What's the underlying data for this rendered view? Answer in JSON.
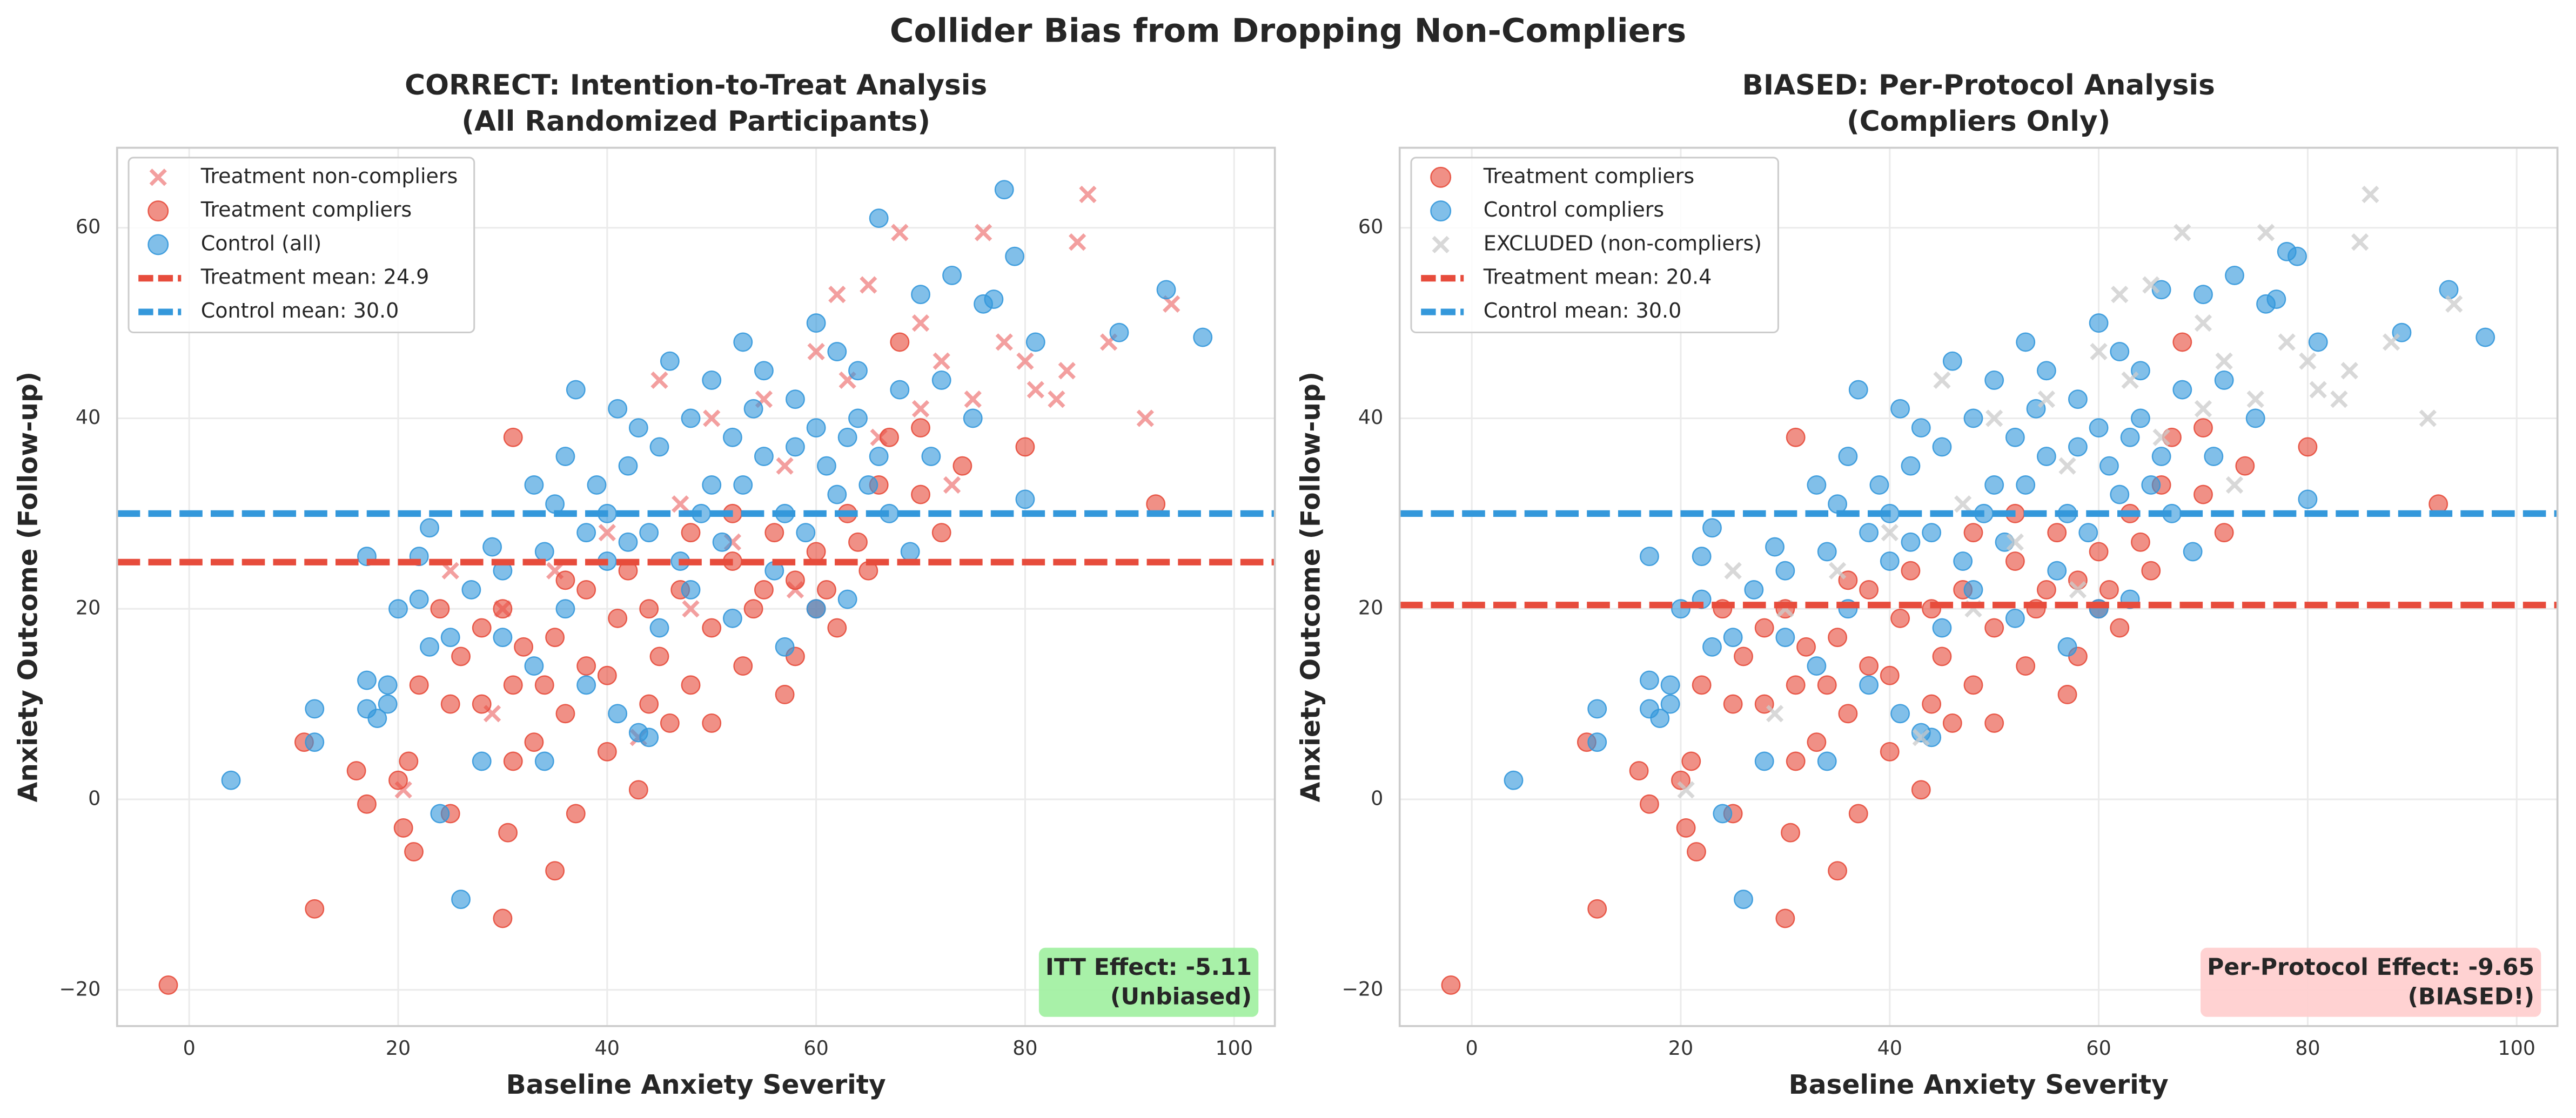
{
  "suptitle": "Collider Bias from Dropping Non-Compliers",
  "chart_data": [
    {
      "type": "scatter",
      "title": "CORRECT: Intention-to-Treat Analysis",
      "subtitle": "(All Randomized Participants)",
      "xlabel": "Baseline Anxiety Severity",
      "ylabel": "Anxiety Outcome (Follow-up)",
      "xlim": [
        -6.9,
        103.9
      ],
      "ylim": [
        -23.8,
        68.4
      ],
      "xticks": [
        0,
        20,
        40,
        60,
        80,
        100
      ],
      "yticks": [
        {
          "value": -20,
          "label": "−20"
        },
        0,
        20,
        40,
        60
      ],
      "grid": true,
      "legend": "upper left",
      "series": [
        {
          "name": "Treatment non-compliers",
          "color": "#f08080",
          "marker": "x",
          "x": [
            86,
            85,
            76,
            94,
            91.5,
            84,
            83,
            81,
            78,
            80,
            72,
            75,
            68,
            65,
            70,
            62,
            20.5,
            43,
            60,
            55,
            50,
            47,
            45,
            40,
            35,
            30,
            25,
            52,
            57,
            63,
            66,
            73,
            88,
            29,
            48,
            58,
            70
          ],
          "values": [
            63.5,
            58.5,
            59.5,
            52,
            40,
            45,
            42,
            43,
            48,
            46,
            46,
            42,
            59.5,
            54,
            50,
            53,
            1,
            6.5,
            47,
            42,
            40,
            31,
            44,
            28,
            24,
            20,
            24,
            27,
            35,
            44,
            38,
            33,
            48,
            9,
            20,
            22,
            41
          ]
        },
        {
          "name": "Treatment compliers",
          "color": "#e74c3c",
          "marker": "o",
          "x": [
            -2,
            12,
            11,
            16,
            17,
            20,
            20.5,
            21,
            21.5,
            25,
            30,
            30.5,
            35,
            37,
            43,
            92.5,
            80,
            70,
            68,
            74,
            72,
            60,
            57,
            58,
            50,
            48,
            44,
            40,
            33,
            31,
            28,
            25,
            26,
            24,
            22,
            30,
            35,
            38,
            41,
            45,
            47,
            50,
            52,
            55,
            56,
            60,
            63,
            65,
            62,
            66,
            70,
            48,
            42,
            38,
            34,
            36,
            31,
            52,
            54,
            46,
            40,
            58,
            67,
            64,
            44,
            32,
            28,
            36,
            53,
            61,
            31
          ],
          "values": [
            -19.5,
            -11.5,
            6,
            3,
            -0.5,
            2,
            -3,
            4,
            -5.5,
            -1.5,
            -12.5,
            -3.5,
            -7.5,
            -1.5,
            1,
            31,
            37,
            39,
            48,
            35,
            28,
            20,
            11,
            15,
            8,
            12,
            10,
            5,
            6,
            12,
            18,
            10,
            15,
            20,
            12,
            20,
            17,
            14,
            19,
            15,
            22,
            18,
            25,
            22,
            28,
            26,
            30,
            24,
            18,
            33,
            32,
            28,
            24,
            22,
            12,
            9,
            4,
            30,
            20,
            8,
            13,
            23,
            38,
            27,
            20,
            16,
            10,
            23,
            14,
            22,
            38
          ]
        },
        {
          "name": "Control (all)",
          "color": "#3498db",
          "marker": "o",
          "x": [
            4,
            12,
            12,
            17,
            17,
            18,
            19,
            19,
            17,
            22,
            23,
            24,
            26,
            28,
            29,
            97,
            93.5,
            89,
            81,
            78,
            76,
            79,
            80,
            66,
            77,
            73,
            70,
            72,
            68,
            75,
            64,
            62,
            60,
            58,
            55,
            52,
            50,
            48,
            45,
            42,
            40,
            38,
            35,
            37,
            34,
            33,
            30,
            27,
            25,
            23,
            22,
            20,
            30,
            33,
            36,
            38,
            41,
            43,
            45,
            47,
            49,
            51,
            53,
            55,
            57,
            59,
            61,
            63,
            65,
            67,
            69,
            71,
            46,
            50,
            54,
            56,
            44,
            42,
            40,
            39,
            43,
            58,
            60,
            62,
            64,
            66,
            53,
            48,
            52,
            57,
            60,
            63,
            41,
            36,
            44,
            34
          ],
          "values": [
            2,
            9.5,
            6,
            12.5,
            9.5,
            8.5,
            12,
            10,
            25.5,
            25.5,
            28.5,
            -1.5,
            -10.5,
            4,
            26.5,
            48.5,
            53.5,
            49,
            48,
            64,
            52,
            57,
            31.5,
            61,
            52.5,
            55,
            53,
            44,
            43,
            40,
            45,
            47,
            50,
            42,
            45,
            38,
            44,
            40,
            37,
            35,
            30,
            28,
            31,
            43,
            26,
            33,
            24,
            22,
            17,
            16,
            21,
            20,
            17,
            14,
            20,
            12,
            9,
            7,
            18,
            25,
            30,
            27,
            33,
            36,
            30,
            28,
            35,
            38,
            33,
            30,
            26,
            36,
            46,
            33,
            41,
            24,
            28,
            27,
            25,
            33,
            39,
            37,
            39,
            32,
            40,
            36,
            48,
            22,
            19,
            16,
            20,
            21,
            41,
            36,
            6.5,
            4
          ]
        }
      ],
      "hlines": [
        {
          "name": "Treatment mean: 24.9",
          "value": 24.9,
          "color": "#e74c3c"
        },
        {
          "name": "Control mean: 30.0",
          "value": 30.0,
          "color": "#3498db"
        }
      ],
      "annotation": [
        "ITT Effect: -5.11",
        "(Unbiased)"
      ],
      "annotation_color": "#a3f0a3"
    },
    {
      "type": "scatter",
      "title": "BIASED: Per-Protocol Analysis",
      "subtitle": "(Compliers Only)",
      "xlabel": "Baseline Anxiety Severity",
      "ylabel": "Anxiety Outcome (Follow-up)",
      "xlim": [
        -6.9,
        103.9
      ],
      "ylim": [
        -23.8,
        68.4
      ],
      "xticks": [
        0,
        20,
        40,
        60,
        80,
        100
      ],
      "yticks": [
        {
          "value": -20,
          "label": "−20"
        },
        0,
        20,
        40,
        60
      ],
      "grid": true,
      "legend": "upper left",
      "series": [
        {
          "name": "Treatment compliers",
          "color": "#e74c3c",
          "marker": "o",
          "x": [
            -2,
            12,
            11,
            16,
            17,
            20,
            20.5,
            21,
            21.5,
            25,
            30,
            30.5,
            35,
            37,
            43,
            92.5,
            80,
            70,
            68,
            74,
            72,
            60,
            57,
            58,
            50,
            48,
            44,
            40,
            33,
            31,
            28,
            25,
            26,
            24,
            22,
            30,
            35,
            38,
            41,
            45,
            47,
            50,
            52,
            55,
            56,
            60,
            63,
            65,
            62,
            66,
            70,
            48,
            42,
            38,
            34,
            36,
            31,
            52,
            54,
            46,
            40,
            58,
            67,
            64,
            44,
            32,
            28,
            36,
            53,
            61,
            31
          ],
          "values": [
            -19.5,
            -11.5,
            6,
            3,
            -0.5,
            2,
            -3,
            4,
            -5.5,
            -1.5,
            -12.5,
            -3.5,
            -7.5,
            -1.5,
            1,
            31,
            37,
            39,
            48,
            35,
            28,
            20,
            11,
            15,
            8,
            12,
            10,
            5,
            6,
            12,
            18,
            10,
            15,
            20,
            12,
            20,
            17,
            14,
            19,
            15,
            22,
            18,
            25,
            22,
            28,
            26,
            30,
            24,
            18,
            33,
            32,
            28,
            24,
            22,
            12,
            9,
            4,
            30,
            20,
            8,
            13,
            23,
            38,
            27,
            20,
            16,
            10,
            23,
            14,
            22,
            38
          ]
        },
        {
          "name": "Control compliers",
          "color": "#3498db",
          "marker": "o",
          "x": [
            4,
            12,
            12,
            17,
            17,
            18,
            19,
            19,
            17,
            22,
            23,
            24,
            26,
            28,
            29,
            97,
            93.5,
            89,
            81,
            78,
            76,
            79,
            80,
            66,
            77,
            73,
            70,
            72,
            68,
            75,
            64,
            62,
            60,
            58,
            55,
            52,
            50,
            48,
            45,
            42,
            40,
            38,
            35,
            37,
            34,
            33,
            30,
            27,
            25,
            23,
            22,
            20,
            30,
            33,
            36,
            38,
            41,
            43,
            45,
            47,
            49,
            51,
            53,
            55,
            57,
            59,
            61,
            63,
            65,
            67,
            69,
            71,
            46,
            50,
            54,
            56,
            44,
            42,
            40,
            39,
            43,
            58,
            60,
            62,
            64,
            66,
            53,
            48,
            52,
            57,
            60,
            63,
            41,
            36,
            44,
            34
          ],
          "values": [
            2,
            9.5,
            6,
            12.5,
            9.5,
            8.5,
            12,
            10,
            25.5,
            25.5,
            28.5,
            -1.5,
            -10.5,
            4,
            26.5,
            48.5,
            53.5,
            49,
            48,
            57.5,
            52,
            57,
            31.5,
            53.5,
            52.5,
            55,
            53,
            44,
            43,
            40,
            45,
            47,
            50,
            42,
            45,
            38,
            44,
            40,
            37,
            35,
            30,
            28,
            31,
            43,
            26,
            33,
            24,
            22,
            17,
            16,
            21,
            20,
            17,
            14,
            20,
            12,
            9,
            7,
            18,
            25,
            30,
            27,
            33,
            36,
            30,
            28,
            35,
            38,
            33,
            30,
            26,
            36,
            46,
            33,
            41,
            24,
            28,
            27,
            25,
            33,
            39,
            37,
            39,
            32,
            40,
            36,
            48,
            22,
            19,
            16,
            20,
            21,
            41,
            36,
            6.5,
            4
          ]
        },
        {
          "name": "EXCLUDED (non-compliers)",
          "color": "#cccccc",
          "marker": "x",
          "x": [
            86,
            85,
            76,
            94,
            91.5,
            84,
            83,
            81,
            78,
            80,
            72,
            75,
            68,
            65,
            70,
            62,
            20.5,
            43,
            60,
            55,
            50,
            47,
            45,
            40,
            35,
            30,
            25,
            52,
            57,
            63,
            66,
            73,
            88,
            29,
            48,
            58,
            70
          ],
          "values": [
            63.5,
            58.5,
            59.5,
            52,
            40,
            45,
            42,
            43,
            48,
            46,
            46,
            42,
            59.5,
            54,
            50,
            53,
            1,
            6.5,
            47,
            42,
            40,
            31,
            44,
            28,
            24,
            20,
            24,
            27,
            35,
            44,
            38,
            33,
            48,
            9,
            20,
            22,
            41
          ]
        }
      ],
      "hlines": [
        {
          "name": "Treatment mean: 20.4",
          "value": 20.4,
          "color": "#e74c3c"
        },
        {
          "name": "Control mean: 30.0",
          "value": 30.0,
          "color": "#3498db"
        }
      ],
      "annotation": [
        "Per-Protocol Effect: -9.65",
        "(BIASED!)"
      ],
      "annotation_color": "#ffd0d0"
    }
  ]
}
